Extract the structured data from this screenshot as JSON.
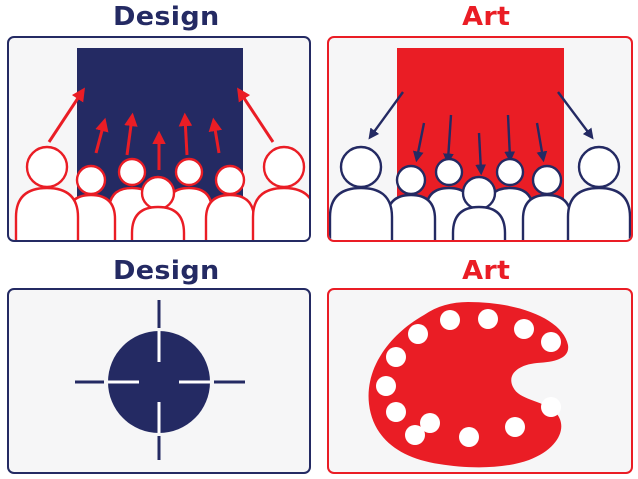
{
  "colors": {
    "design": "#242a63",
    "art": "#ea1d25",
    "panel_bg": "#f6f6f7",
    "person_fill": "#ffffff"
  },
  "quadrants": {
    "top_left_title": "Design",
    "top_right_title": "Art",
    "bottom_left_title": "Design",
    "bottom_right_title": "Art"
  },
  "icons": {
    "top_left": "audience-outward-arrows-icon",
    "top_right": "audience-inward-arrows-icon",
    "bottom_left": "crosshair-target-icon",
    "bottom_right": "paint-palette-icon"
  }
}
